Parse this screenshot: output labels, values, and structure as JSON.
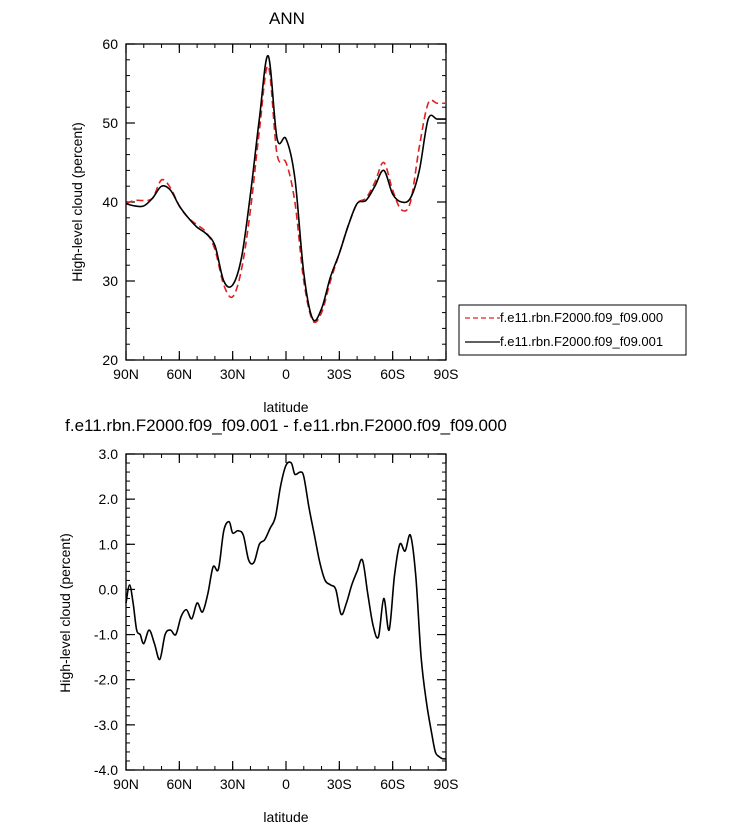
{
  "chart_data": [
    {
      "type": "line",
      "title": "ANN",
      "xlabel": "latitude",
      "ylabel": "High-level cloud (percent)",
      "xlim": [
        -90,
        90
      ],
      "ylim": [
        20,
        60
      ],
      "x_direction": "north-to-south",
      "xticks": [
        {
          "value": -90,
          "label": "90N"
        },
        {
          "value": -60,
          "label": "60N"
        },
        {
          "value": -30,
          "label": "30N"
        },
        {
          "value": 0,
          "label": "0"
        },
        {
          "value": 30,
          "label": "30S"
        },
        {
          "value": 60,
          "label": "60S"
        },
        {
          "value": 90,
          "label": "90S"
        }
      ],
      "yticks": [
        {
          "value": 20,
          "label": "20"
        },
        {
          "value": 30,
          "label": "30"
        },
        {
          "value": 40,
          "label": "40"
        },
        {
          "value": 50,
          "label": "50"
        },
        {
          "value": 60,
          "label": "60"
        }
      ],
      "legend": "right",
      "series": [
        {
          "name": "f.e11.rbn.F2000.f09_f09.000",
          "color": "#e02020",
          "dash": "dashed",
          "x": [
            -90,
            -85,
            -80,
            -75,
            -70,
            -65,
            -60,
            -55,
            -50,
            -45,
            -40,
            -35,
            -30,
            -25,
            -20,
            -15,
            -10,
            -5,
            0,
            5,
            10,
            15,
            20,
            25,
            30,
            35,
            40,
            45,
            50,
            55,
            60,
            65,
            70,
            75,
            80,
            85,
            90
          ],
          "y": [
            39.8,
            40.2,
            40.2,
            40.5,
            42.8,
            41.8,
            39.5,
            38.0,
            37.1,
            36.2,
            34.0,
            29.5,
            28.0,
            31.5,
            39.0,
            49.0,
            57.2,
            46.0,
            45.0,
            40.0,
            30.0,
            25.0,
            26.0,
            30.0,
            33.5,
            37.0,
            39.8,
            40.5,
            42.5,
            45.0,
            41.5,
            39.0,
            40.0,
            47.0,
            52.5,
            52.5,
            52.5
          ]
        },
        {
          "name": "f.e11.rbn.F2000.f09_f09.001",
          "color": "#000000",
          "dash": "solid",
          "x": [
            -90,
            -85,
            -80,
            -75,
            -70,
            -65,
            -60,
            -55,
            -50,
            -45,
            -40,
            -35,
            -30,
            -25,
            -20,
            -15,
            -10,
            -5,
            0,
            5,
            10,
            15,
            20,
            25,
            30,
            35,
            40,
            45,
            50,
            55,
            60,
            65,
            70,
            75,
            80,
            85,
            90
          ],
          "y": [
            39.8,
            39.5,
            39.5,
            40.5,
            42.0,
            41.5,
            39.5,
            38.0,
            36.8,
            36.0,
            34.5,
            30.0,
            29.5,
            33.0,
            41.0,
            50.5,
            58.5,
            48.0,
            48.0,
            43.0,
            31.0,
            25.2,
            26.5,
            30.5,
            33.5,
            37.0,
            39.8,
            40.2,
            42.0,
            44.0,
            41.0,
            40.0,
            40.5,
            44.0,
            50.5,
            50.5,
            50.5
          ]
        }
      ]
    },
    {
      "type": "line",
      "title": "f.e11.rbn.F2000.f09_f09.001 - f.e11.rbn.F2000.f09_f09.000",
      "xlabel": "latitude",
      "ylabel": "High-level cloud (percent)",
      "xlim": [
        -90,
        90
      ],
      "ylim": [
        -4.0,
        3.0
      ],
      "x_direction": "north-to-south",
      "xticks": [
        {
          "value": -90,
          "label": "90N"
        },
        {
          "value": -60,
          "label": "60N"
        },
        {
          "value": -30,
          "label": "30N"
        },
        {
          "value": 0,
          "label": "0"
        },
        {
          "value": 30,
          "label": "30S"
        },
        {
          "value": 60,
          "label": "60S"
        },
        {
          "value": 90,
          "label": "90S"
        }
      ],
      "yticks": [
        {
          "value": 3.0,
          "label": "3.0"
        },
        {
          "value": 2.0,
          "label": "2.0"
        },
        {
          "value": 1.0,
          "label": "1.0"
        },
        {
          "value": 0.0,
          "label": "0.0"
        },
        {
          "value": -1.0,
          "label": "-1.0"
        },
        {
          "value": -2.0,
          "label": "-2.0"
        },
        {
          "value": -3.0,
          "label": "-3.0"
        },
        {
          "value": -4.0,
          "label": "-4.0"
        }
      ],
      "series": [
        {
          "color": "#000000",
          "dash": "solid",
          "x": [
            -90,
            -88,
            -86,
            -84,
            -82,
            -80,
            -77,
            -74,
            -71,
            -68,
            -65,
            -62,
            -59,
            -56,
            -53,
            -50,
            -47,
            -44,
            -41,
            -38,
            -35,
            -32,
            -30,
            -27,
            -24,
            -21,
            -18,
            -15,
            -12,
            -9,
            -6,
            -3,
            0,
            3,
            5,
            8,
            10,
            13,
            16,
            19,
            22,
            25,
            28,
            31,
            34,
            37,
            40,
            43,
            46,
            49,
            52,
            55,
            58,
            61,
            64,
            67,
            70,
            73,
            76,
            79,
            82,
            84,
            86,
            88,
            90
          ],
          "y": [
            -0.3,
            0.1,
            -0.3,
            -0.9,
            -1.0,
            -1.2,
            -0.9,
            -1.2,
            -1.55,
            -1.0,
            -0.9,
            -1.0,
            -0.6,
            -0.45,
            -0.65,
            -0.3,
            -0.5,
            -0.1,
            0.5,
            0.45,
            1.3,
            1.5,
            1.25,
            1.3,
            1.2,
            0.65,
            0.6,
            1.0,
            1.1,
            1.35,
            1.6,
            2.3,
            2.75,
            2.8,
            2.55,
            2.6,
            2.5,
            1.8,
            1.2,
            0.6,
            0.2,
            0.1,
            0.0,
            -0.55,
            -0.3,
            0.1,
            0.4,
            0.65,
            -0.1,
            -0.8,
            -1.05,
            -0.2,
            -0.9,
            0.3,
            1.0,
            0.85,
            1.2,
            0.3,
            -1.5,
            -2.5,
            -3.2,
            -3.6,
            -3.7,
            -3.75,
            -3.75
          ]
        }
      ]
    }
  ]
}
